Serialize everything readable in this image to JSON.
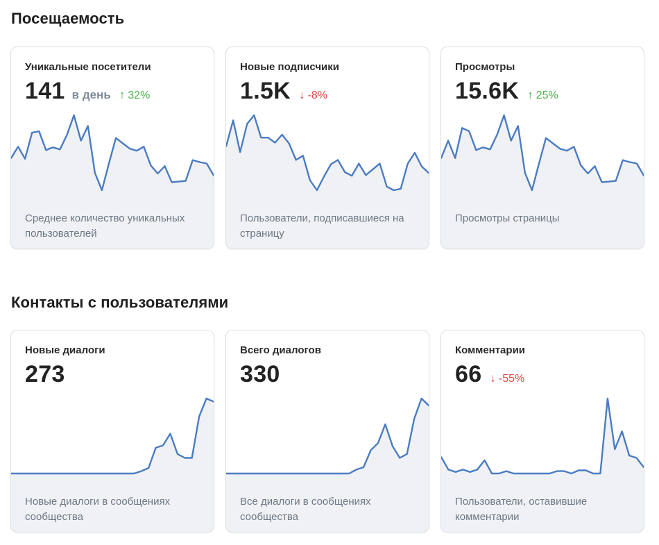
{
  "sections": [
    {
      "title": "Посещаемость",
      "cards": [
        {
          "label": "Уникальные посетители",
          "value": "141",
          "unit": "в день",
          "delta": {
            "direction": "up",
            "text": "32%"
          },
          "description": "Среднее количество уникальных пользователей",
          "series": [
            48,
            65,
            47,
            86,
            88,
            60,
            64,
            61,
            83,
            112,
            74,
            96,
            26,
            0,
            40,
            78,
            70,
            62,
            59,
            65,
            37,
            25,
            36,
            12,
            13,
            14,
            45,
            42,
            40,
            22
          ]
        },
        {
          "label": "Новые подписчики",
          "value": "1.5K",
          "unit": "",
          "delta": {
            "direction": "down",
            "text": "-8%"
          },
          "description": "Пользователи, подписавшиеся на страницу",
          "series": [
            61,
            97,
            53,
            92,
            104,
            73,
            73,
            66,
            77,
            65,
            42,
            48,
            14,
            0,
            19,
            36,
            42,
            25,
            20,
            37,
            21,
            29,
            37,
            5,
            0,
            2,
            37,
            52,
            33,
            24
          ]
        },
        {
          "label": "Просмотры",
          "value": "15.6K",
          "unit": "",
          "delta": {
            "direction": "up",
            "text": "25%"
          },
          "description": "Просмотры страницы",
          "series": [
            48,
            74,
            48,
            93,
            88,
            60,
            64,
            61,
            83,
            112,
            74,
            96,
            26,
            0,
            40,
            78,
            70,
            62,
            59,
            65,
            37,
            25,
            36,
            12,
            13,
            14,
            45,
            42,
            40,
            22
          ]
        }
      ]
    },
    {
      "title": "Контакты с пользователями",
      "cards": [
        {
          "label": "Новые диалоги",
          "value": "273",
          "unit": "",
          "delta": null,
          "description": "Новые диалоги в сообщениях сообщества",
          "series": [
            0,
            0,
            0,
            0,
            0,
            0,
            0,
            0,
            0,
            0,
            0,
            0,
            0,
            0,
            0,
            0,
            0,
            0,
            3,
            7,
            33,
            36,
            51,
            25,
            20,
            20,
            73,
            96,
            92
          ]
        },
        {
          "label": "Всего диалогов",
          "value": "330",
          "unit": "",
          "delta": null,
          "description": "Все диалоги в сообщениях сообщества",
          "series": [
            0,
            0,
            0,
            0,
            0,
            0,
            0,
            0,
            0,
            0,
            0,
            0,
            0,
            0,
            0,
            0,
            0,
            0,
            5,
            8,
            30,
            39,
            63,
            35,
            20,
            25,
            70,
            96,
            87
          ]
        },
        {
          "label": "Комментарии",
          "value": "66",
          "unit": "",
          "delta": {
            "direction": "down",
            "text": "-55%"
          },
          "description": "Пользователи, оставившие комментарии",
          "series": [
            21,
            5,
            2,
            5,
            2,
            5,
            17,
            0,
            0,
            3,
            0,
            0,
            0,
            0,
            0,
            0,
            3,
            3,
            0,
            4,
            4,
            0,
            0,
            96,
            31,
            54,
            23,
            20,
            8
          ]
        }
      ]
    }
  ],
  "colors": {
    "line": "#4a7cc1",
    "fill": "#f0f1f4",
    "up": "#4bb34b",
    "down": "#e64646"
  },
  "icons": {
    "up": "arrow-up-icon",
    "down": "arrow-down-icon"
  }
}
